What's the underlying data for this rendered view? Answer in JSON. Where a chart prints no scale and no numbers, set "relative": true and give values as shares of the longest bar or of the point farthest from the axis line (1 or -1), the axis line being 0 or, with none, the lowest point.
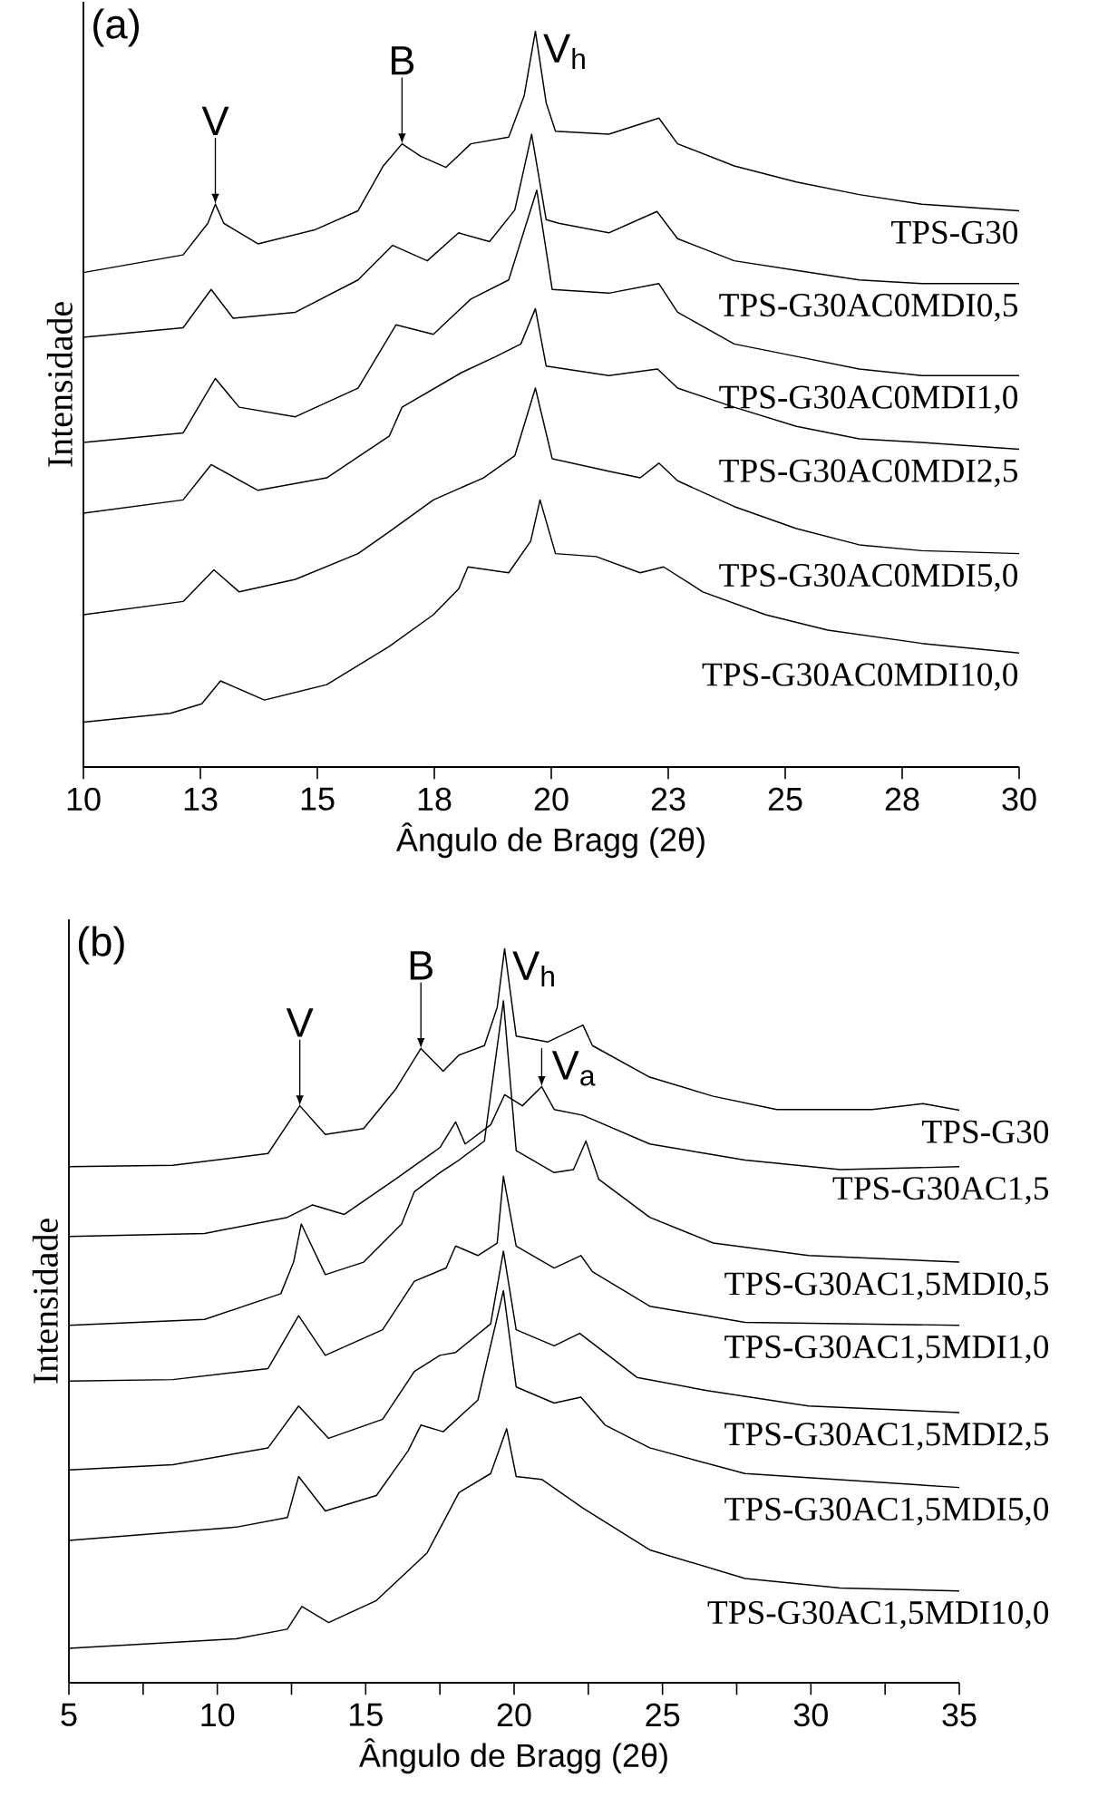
{
  "chart_data": [
    {
      "type": "line",
      "relative": true,
      "tick_labels": "x",
      "xlabel": "Ângulo de Bragg (2θ)",
      "ylabel": "Intensidade",
      "xlim": [
        10,
        30
      ],
      "xticks": [
        10,
        {
          "value": 12.5,
          "label": "13"
        },
        15,
        {
          "value": 17.5,
          "label": "18"
        },
        20,
        {
          "value": 22.5,
          "label": "23"
        },
        25,
        {
          "value": 27.5,
          "label": "28"
        },
        30
      ],
      "annotations": [
        "(a)",
        {
          "text": "V",
          "x": 12.82,
          "y": 0.765
        },
        {
          "text": "B",
          "x": 16.81,
          "y": 0.847
        },
        {
          "text": "V$_{h}$",
          "x": 19.66,
          "y": 1.0
        }
      ],
      "series": [
        {
          "name": "TPS-G30",
          "color": "#000000",
          "x": [
            10,
            12.13,
            12.66,
            12.82,
            13.0,
            13.73,
            14.94,
            15.87,
            16.41,
            16.81,
            17.21,
            17.75,
            18.28,
            19.09,
            19.42,
            19.66,
            19.89,
            20.09,
            21.23,
            22.3,
            22.7,
            23.91,
            25.24,
            26.58,
            27.92,
            30
          ],
          "values": [
            0.672,
            0.696,
            0.739,
            0.765,
            0.739,
            0.711,
            0.73,
            0.756,
            0.817,
            0.847,
            0.83,
            0.815,
            0.847,
            0.856,
            0.912,
            1.0,
            0.903,
            0.864,
            0.86,
            0.882,
            0.847,
            0.817,
            0.795,
            0.778,
            0.765,
            0.756
          ]
        },
        {
          "name": "TPS-G30AC0MDI0,5",
          "color": "#000000",
          "x": [
            10,
            12.13,
            12.73,
            13.2,
            14.53,
            15.87,
            16.61,
            17.35,
            18.02,
            18.68,
            19.22,
            19.58,
            19.89,
            20.16,
            21.23,
            22.26,
            22.7,
            23.91,
            25.24,
            26.58,
            27.92,
            30
          ],
          "values": [
            0.584,
            0.597,
            0.649,
            0.61,
            0.618,
            0.662,
            0.709,
            0.688,
            0.726,
            0.714,
            0.757,
            0.86,
            0.744,
            0.739,
            0.726,
            0.755,
            0.718,
            0.688,
            0.675,
            0.662,
            0.657,
            0.657
          ]
        },
        {
          "name": "TPS-G30AC0MDI1,0",
          "color": "#000000",
          "x": [
            10,
            12.13,
            12.82,
            13.33,
            14.53,
            15.87,
            16.68,
            17.48,
            18.28,
            19.09,
            19.69,
            20.02,
            21.23,
            22.3,
            22.7,
            23.91,
            25.24,
            26.58,
            27.92,
            30
          ],
          "values": [
            0.441,
            0.454,
            0.528,
            0.489,
            0.476,
            0.515,
            0.601,
            0.588,
            0.636,
            0.662,
            0.784,
            0.649,
            0.644,
            0.657,
            0.618,
            0.575,
            0.558,
            0.541,
            0.532,
            0.532
          ]
        },
        {
          "name": "TPS-G30AC0MDI2,5",
          "color": "#000000",
          "x": [
            10,
            12.13,
            12.73,
            13.73,
            15.2,
            16.54,
            16.81,
            18.08,
            18.82,
            19.35,
            19.66,
            19.89,
            21.23,
            22.27,
            22.7,
            23.91,
            25.24,
            26.58,
            27.92,
            30
          ],
          "values": [
            0.345,
            0.363,
            0.411,
            0.376,
            0.393,
            0.45,
            0.489,
            0.536,
            0.558,
            0.575,
            0.623,
            0.545,
            0.532,
            0.541,
            0.515,
            0.489,
            0.463,
            0.446,
            0.441,
            0.432
          ]
        },
        {
          "name": "TPS-G30AC0MDI5,0",
          "color": "#000000",
          "x": [
            10,
            12.13,
            12.79,
            13.33,
            14.53,
            15.87,
            16.54,
            17.48,
            18.55,
            19.22,
            19.66,
            20.02,
            21.23,
            21.9,
            22.3,
            22.7,
            23.91,
            25.24,
            26.58,
            27.92,
            30
          ],
          "values": [
            0.207,
            0.225,
            0.268,
            0.238,
            0.255,
            0.29,
            0.32,
            0.363,
            0.393,
            0.423,
            0.515,
            0.419,
            0.402,
            0.393,
            0.413,
            0.389,
            0.354,
            0.324,
            0.302,
            0.294,
            0.29
          ]
        },
        {
          "name": "TPS-G30AC0MDI10,0",
          "color": "#000000",
          "x": [
            10,
            11.86,
            12.53,
            12.93,
            13.87,
            15.2,
            16.54,
            17.48,
            18.02,
            18.22,
            19.09,
            19.56,
            19.76,
            20.09,
            20.96,
            21.9,
            22.4,
            23.24,
            24.58,
            25.91,
            27.92,
            30
          ],
          "values": [
            0.061,
            0.073,
            0.086,
            0.117,
            0.091,
            0.112,
            0.164,
            0.207,
            0.242,
            0.272,
            0.264,
            0.307,
            0.363,
            0.29,
            0.286,
            0.264,
            0.272,
            0.238,
            0.207,
            0.186,
            0.168,
            0.155
          ]
        }
      ]
    },
    {
      "type": "line",
      "relative": true,
      "tick_labels": "x",
      "xlabel": "Ângulo de Bragg (2θ)",
      "ylabel": "Intensidade",
      "xlim": [
        5,
        35
      ],
      "xticks": [
        5,
        {
          "value": 7.5,
          "label": null
        },
        10,
        {
          "value": 12.5,
          "label": null
        },
        15,
        {
          "value": 17.5,
          "label": null
        },
        20,
        {
          "value": 22.5,
          "label": null
        },
        25,
        {
          "value": 27.5,
          "label": null
        },
        30,
        {
          "value": 32.5,
          "label": null
        },
        35
      ],
      "annotations": [
        "(b)",
        {
          "text": "V",
          "x": 12.78,
          "y": 0.786
        },
        {
          "text": "B",
          "x": 16.86,
          "y": 0.864
        },
        {
          "text": "V$_{h}$",
          "x": 19.68,
          "y": 1.0
        },
        {
          "text": "V$_{a}$",
          "x": 20.93,
          "y": 0.812
        }
      ],
      "series": [
        {
          "name": "TPS-G30",
          "color": "#000000",
          "x": [
            5,
            8.5,
            11.71,
            12.78,
            13.64,
            14.93,
            16.0,
            16.86,
            17.61,
            18.14,
            19.0,
            19.43,
            19.68,
            20.07,
            21.14,
            22.32,
            22.64,
            24.57,
            26.71,
            28.85,
            32.07,
            33.78,
            35
          ],
          "values": [
            0.703,
            0.705,
            0.721,
            0.786,
            0.747,
            0.755,
            0.808,
            0.864,
            0.833,
            0.855,
            0.868,
            0.92,
            1.0,
            0.881,
            0.873,
            0.896,
            0.868,
            0.825,
            0.799,
            0.781,
            0.781,
            0.789,
            0.78
          ]
        },
        {
          "name": "TPS-G30AC1,5",
          "color": "#000000",
          "x": [
            5,
            9.57,
            12.36,
            13.21,
            14.28,
            16.0,
            17.5,
            18.03,
            18.35,
            19.21,
            19.68,
            20.28,
            20.93,
            21.35,
            22.32,
            24.57,
            27.78,
            30.99,
            35
          ],
          "values": [
            0.608,
            0.612,
            0.634,
            0.651,
            0.638,
            0.686,
            0.729,
            0.764,
            0.734,
            0.76,
            0.801,
            0.786,
            0.812,
            0.781,
            0.773,
            0.734,
            0.712,
            0.699,
            0.703
          ]
        },
        {
          "name": "TPS-G30AC1,5MDI0,5",
          "color": "#000000",
          "x": [
            5,
            9.57,
            12.14,
            12.57,
            12.83,
            13.64,
            14.93,
            16.21,
            16.64,
            17.5,
            18.14,
            19.0,
            19.64,
            20.07,
            21.35,
            22.0,
            22.42,
            22.85,
            24.57,
            26.71,
            29.92,
            35
          ],
          "values": [
            0.487,
            0.495,
            0.53,
            0.573,
            0.625,
            0.556,
            0.573,
            0.625,
            0.669,
            0.695,
            0.712,
            0.738,
            0.929,
            0.725,
            0.695,
            0.699,
            0.738,
            0.686,
            0.634,
            0.599,
            0.582,
            0.573
          ]
        },
        {
          "name": "TPS-G30AC1,5MDI1,0",
          "color": "#000000",
          "x": [
            5,
            8.5,
            11.71,
            12.74,
            13.64,
            15.57,
            16.64,
            17.71,
            18.03,
            18.78,
            19.43,
            19.64,
            20.07,
            21.35,
            22.25,
            22.64,
            24.57,
            27.78,
            35
          ],
          "values": [
            0.411,
            0.413,
            0.428,
            0.5,
            0.446,
            0.481,
            0.547,
            0.565,
            0.595,
            0.582,
            0.599,
            0.69,
            0.595,
            0.565,
            0.582,
            0.56,
            0.513,
            0.491,
            0.487
          ]
        },
        {
          "name": "TPS-G30AC1,5MDI2,5",
          "color": "#000000",
          "x": [
            5,
            8.5,
            11.71,
            12.74,
            13.75,
            15.57,
            16.64,
            17.5,
            18.03,
            19.21,
            19.64,
            20.07,
            21.35,
            22.21,
            24.14,
            26.5,
            29.92,
            35
          ],
          "values": [
            0.29,
            0.297,
            0.32,
            0.377,
            0.333,
            0.359,
            0.424,
            0.446,
            0.45,
            0.489,
            0.588,
            0.481,
            0.459,
            0.476,
            0.416,
            0.398,
            0.377,
            0.368
          ]
        },
        {
          "name": "TPS-G30AC1,5MDI5,0",
          "color": "#000000",
          "x": [
            5,
            10.64,
            12.36,
            12.74,
            13.64,
            15.36,
            16.43,
            16.86,
            17.61,
            18.78,
            19.64,
            20.07,
            21.35,
            22.25,
            23.07,
            24.57,
            27.78,
            35
          ],
          "values": [
            0.194,
            0.212,
            0.225,
            0.281,
            0.234,
            0.255,
            0.316,
            0.351,
            0.342,
            0.385,
            0.534,
            0.403,
            0.381,
            0.389,
            0.351,
            0.32,
            0.285,
            0.266
          ]
        },
        {
          "name": "TPS-G30AC1,5MDI10,0",
          "color": "#000000",
          "x": [
            5,
            10.64,
            12.36,
            12.85,
            13.75,
            15.36,
            17.07,
            18.14,
            19.21,
            19.75,
            20.07,
            20.93,
            22.32,
            24.57,
            27.78,
            30.99,
            35
          ],
          "values": [
            0.047,
            0.06,
            0.073,
            0.104,
            0.082,
            0.112,
            0.177,
            0.259,
            0.285,
            0.346,
            0.281,
            0.277,
            0.238,
            0.181,
            0.142,
            0.129,
            0.125
          ]
        }
      ]
    }
  ]
}
